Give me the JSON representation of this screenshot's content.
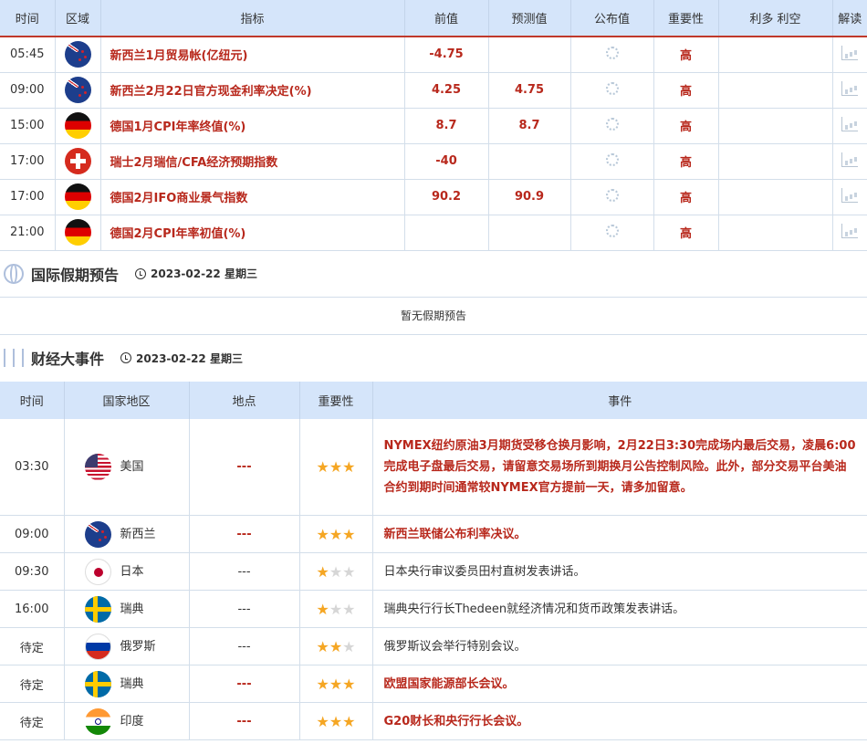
{
  "calendar": {
    "headers": [
      "时间",
      "区域",
      "指标",
      "前值",
      "预测值",
      "公布值",
      "重要性",
      "利多 利空",
      "解读"
    ],
    "rows": [
      {
        "time": "05:45",
        "flag": "nz",
        "indicator": "新西兰1月贸易帐(亿纽元)",
        "previous": "-4.75",
        "forecast": "",
        "actual": "loading",
        "importance": "高"
      },
      {
        "time": "09:00",
        "flag": "nz",
        "indicator": "新西兰2月22日官方现金利率决定(%)",
        "previous": "4.25",
        "forecast": "4.75",
        "actual": "loading",
        "importance": "高"
      },
      {
        "time": "15:00",
        "flag": "de",
        "indicator": "德国1月CPI年率终值(%)",
        "previous": "8.7",
        "forecast": "8.7",
        "actual": "loading",
        "importance": "高"
      },
      {
        "time": "17:00",
        "flag": "ch",
        "indicator": "瑞士2月瑞信/CFA经济预期指数",
        "previous": "-40",
        "forecast": "",
        "actual": "loading",
        "importance": "高"
      },
      {
        "time": "17:00",
        "flag": "de",
        "indicator": "德国2月IFO商业景气指数",
        "previous": "90.2",
        "forecast": "90.9",
        "actual": "loading",
        "importance": "高"
      },
      {
        "time": "21:00",
        "flag": "de",
        "indicator": "德国2月CPI年率初值(%)",
        "previous": "",
        "forecast": "",
        "actual": "loading",
        "importance": "高"
      }
    ]
  },
  "holidays": {
    "title": "国际假期预告",
    "date": "2023-02-22 星期三",
    "empty": "暂无假期预告"
  },
  "events": {
    "title": "财经大事件",
    "date": "2023-02-22 星期三",
    "headers": [
      "时间",
      "国家地区",
      "地点",
      "重要性",
      "事件"
    ],
    "rows": [
      {
        "time": "03:30",
        "flag": "us",
        "country": "美国",
        "location": "---",
        "stars": 3,
        "highlight": true,
        "event": "NYMEX纽约原油3月期货受移仓换月影响，2月22日3:30完成场内最后交易，凌晨6:00完成电子盘最后交易，请留意交易场所到期换月公告控制风险。此外，部分交易平台美油合约到期时间通常较NYMEX官方提前一天，请多加留意。"
      },
      {
        "time": "09:00",
        "flag": "nz",
        "country": "新西兰",
        "location": "---",
        "stars": 3,
        "highlight": true,
        "event": "新西兰联储公布利率决议。"
      },
      {
        "time": "09:30",
        "flag": "jp",
        "country": "日本",
        "location": "---",
        "stars": 1,
        "highlight": false,
        "event": "日本央行审议委员田村直树发表讲话。"
      },
      {
        "time": "16:00",
        "flag": "se",
        "country": "瑞典",
        "location": "---",
        "stars": 1,
        "highlight": false,
        "event": "瑞典央行行长Thedeen就经济情况和货币政策发表讲话。"
      },
      {
        "time": "待定",
        "flag": "ru",
        "country": "俄罗斯",
        "location": "---",
        "stars": 2,
        "highlight": false,
        "event": "俄罗斯议会举行特别会议。"
      },
      {
        "time": "待定",
        "flag": "se",
        "country": "瑞典",
        "location": "---",
        "stars": 3,
        "highlight": true,
        "event": "欧盟国家能源部长会议。"
      },
      {
        "time": "待定",
        "flag": "in",
        "country": "印度",
        "location": "---",
        "stars": 3,
        "highlight": true,
        "event": "G20财长和央行行长会议。"
      }
    ]
  },
  "colors": {
    "header_bg": "#d5e5fa",
    "accent_red": "#b8281c",
    "star": "#f5a623"
  }
}
